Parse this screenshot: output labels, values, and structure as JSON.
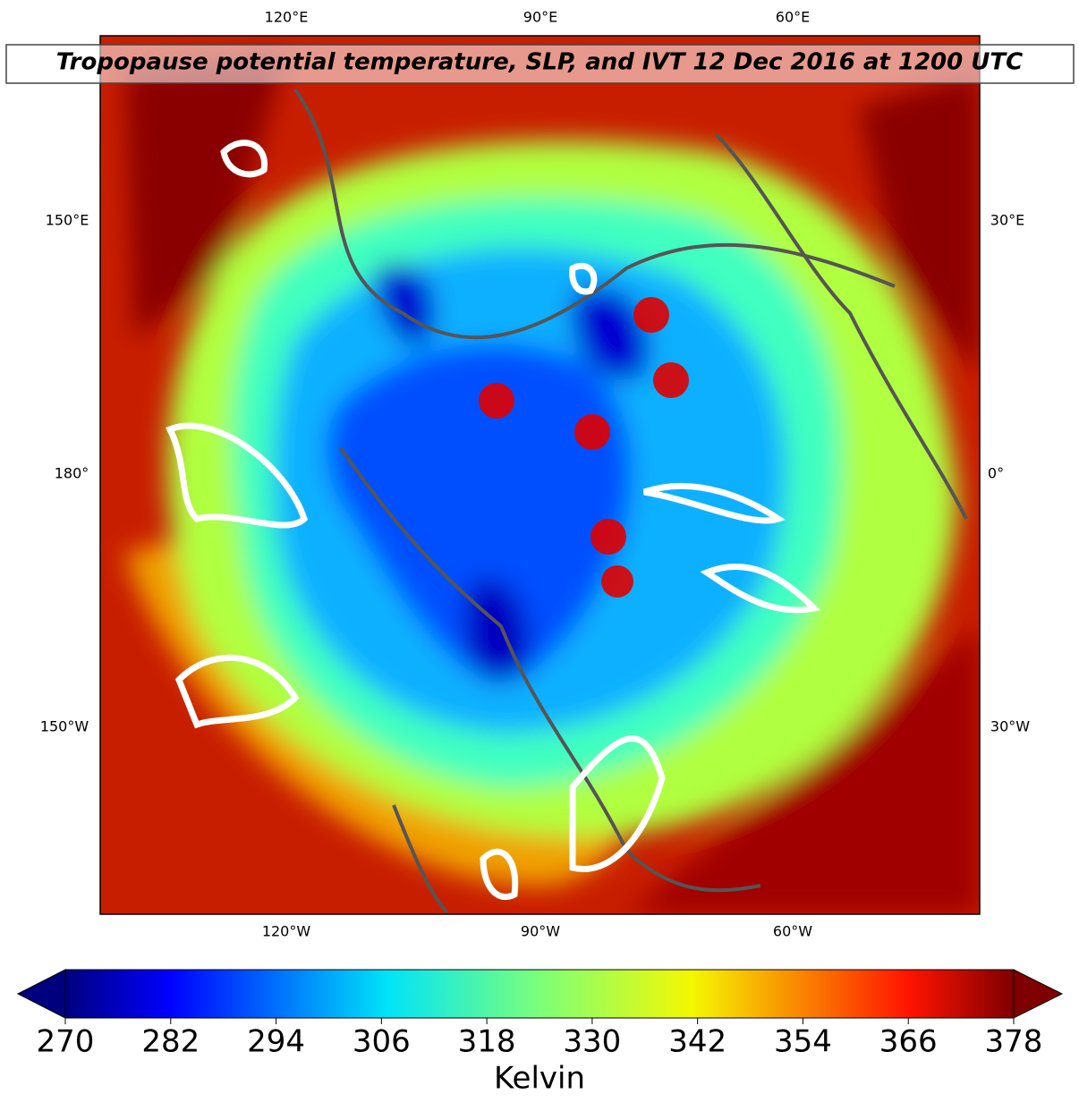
{
  "map": {
    "title": "Tropopause potential temperature, SLP, and IVT 12 Dec 2016 at 1200 UTC",
    "lon_labels": {
      "top": [
        "120°E",
        "90°E",
        "60°E"
      ],
      "left": [
        "150°E",
        "180°",
        "150°W"
      ],
      "right": [
        "30°E",
        "0°",
        "30°W"
      ],
      "bottom": [
        "120°W",
        "90°W",
        "60°W"
      ]
    },
    "colorbar": {
      "lim": [
        270,
        378
      ],
      "ticks": [
        270,
        282,
        294,
        306,
        318,
        330,
        342,
        354,
        366,
        378
      ],
      "label": "Kelvin"
    }
  }
}
